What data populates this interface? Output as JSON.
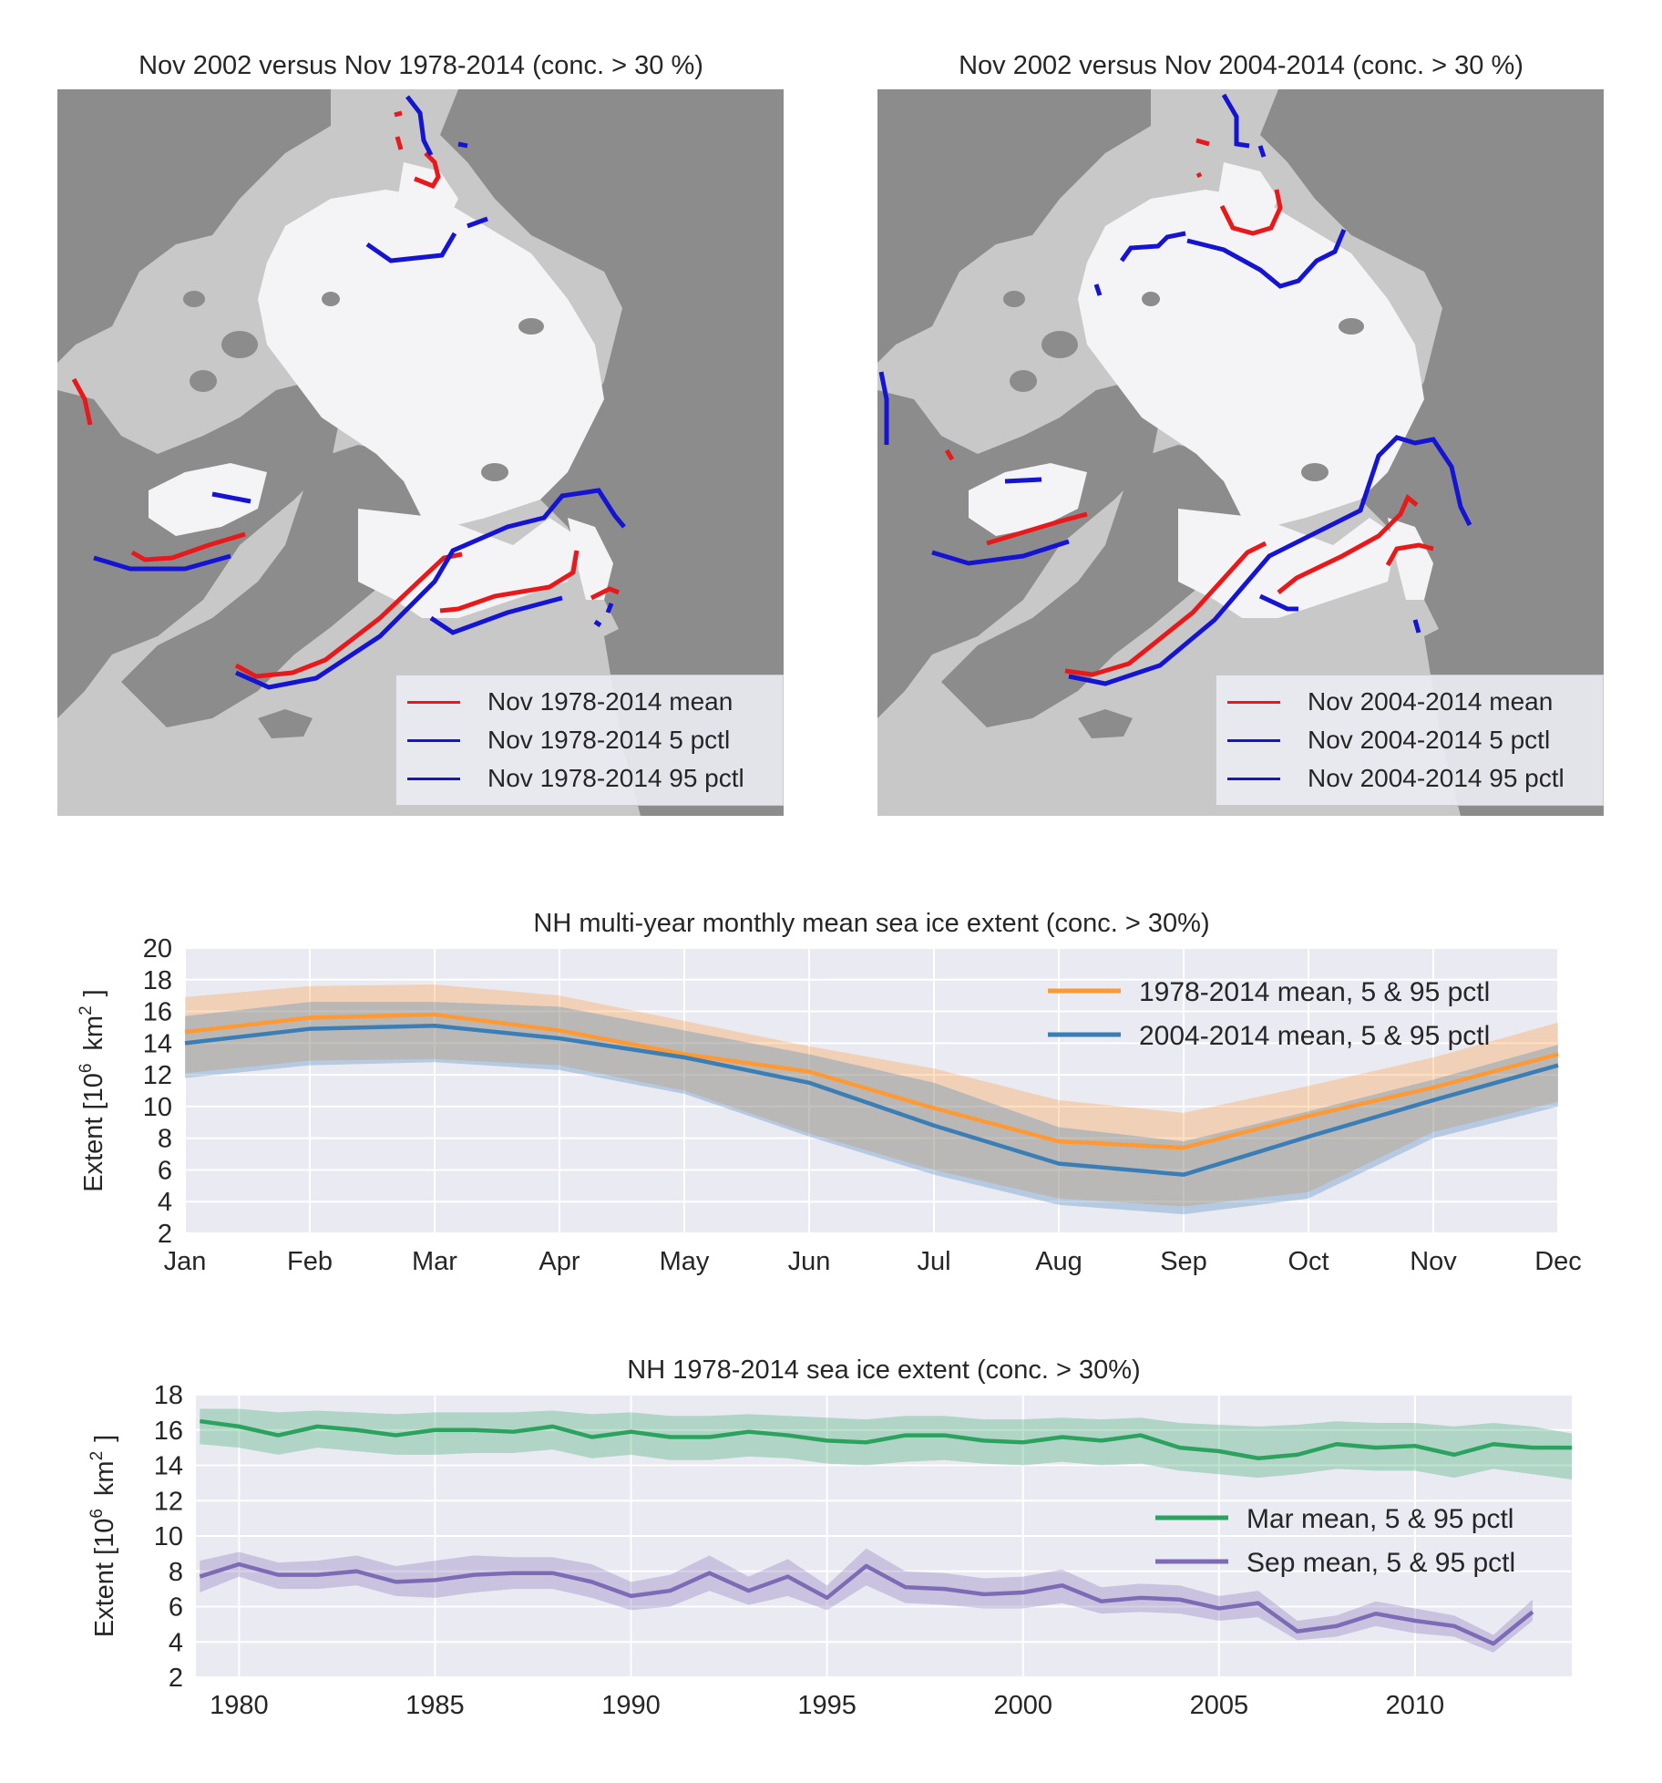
{
  "maps": [
    {
      "title": "Nov 2002 versus Nov 1978-2014 (conc. > 30 %)",
      "legend": [
        {
          "label": "Nov 1978-2014 mean",
          "color": "#e8191a"
        },
        {
          "label": "Nov 1978-2014 5 pctl",
          "color": "#1414d2"
        },
        {
          "label": "Nov 1978-2014 95 pctl",
          "color": "#1414d2"
        }
      ]
    },
    {
      "title": "Nov 2002 versus Nov 2004-2014 (conc. > 30 %)",
      "legend": [
        {
          "label": "Nov 2004-2014 mean",
          "color": "#e8191a"
        },
        {
          "label": "Nov 2004-2014 5 pctl",
          "color": "#1414d2"
        },
        {
          "label": "Nov 2004-2014 95 pctl",
          "color": "#1414d2"
        }
      ]
    }
  ],
  "map_colors": {
    "ocean": "#c8c8c8",
    "land": "#8c8c8c",
    "ice": "#f4f4f6",
    "lake": "#dcdcdc"
  },
  "chart_data": [
    {
      "type": "area",
      "title": "NH multi-year monthly mean sea ice extent (conc. > 30%)",
      "ylabel": "Extent [10⁶ km²]",
      "ylabel_base": "Extent [10",
      "ylabel_exp": "6",
      "ylabel_unit": "km",
      "ylabel_unit_exp": "2",
      "ylabel_end": "]",
      "categories": [
        "Jan",
        "Feb",
        "Mar",
        "Apr",
        "May",
        "Jun",
        "Jul",
        "Aug",
        "Sep",
        "Oct",
        "Nov",
        "Dec"
      ],
      "ylim": [
        2,
        20
      ],
      "yticks": [
        2,
        4,
        6,
        8,
        10,
        12,
        14,
        16,
        18,
        20
      ],
      "grid": true,
      "legend_position": "top-right",
      "series": [
        {
          "name": "1978-2014 mean, 5 & 95 pctl",
          "color": "#ff9933",
          "mean": [
            14.7,
            15.6,
            15.8,
            14.8,
            13.3,
            12.2,
            9.9,
            7.8,
            7.4,
            9.4,
            11.2,
            13.3
          ],
          "p5": [
            12.1,
            12.9,
            13.0,
            12.6,
            11.0,
            8.3,
            6.0,
            4.2,
            3.7,
            4.6,
            8.4,
            10.3
          ],
          "p95": [
            16.9,
            17.6,
            17.7,
            17.0,
            15.4,
            13.8,
            12.4,
            10.4,
            9.6,
            11.3,
            13.1,
            15.3
          ]
        },
        {
          "name": "2004-2014 mean, 5 & 95 pctl",
          "color": "#3a7eb5",
          "mean": [
            14.0,
            14.9,
            15.1,
            14.3,
            13.1,
            11.5,
            8.8,
            6.4,
            5.7,
            8.1,
            10.4,
            12.6
          ],
          "p5": [
            11.8,
            12.6,
            12.8,
            12.3,
            10.8,
            8.1,
            5.7,
            3.8,
            3.2,
            4.2,
            8.0,
            10.0
          ],
          "p95": [
            15.7,
            16.6,
            16.6,
            16.3,
            14.8,
            13.3,
            11.5,
            8.7,
            7.8,
            9.7,
            11.7,
            13.9
          ]
        }
      ]
    },
    {
      "type": "area",
      "title": "NH 1978-2014 sea ice extent (conc. > 30%)",
      "ylabel_base": "Extent [10",
      "ylabel_exp": "6",
      "ylabel_unit": "km",
      "ylabel_unit_exp": "2",
      "ylabel_end": "]",
      "xlim": [
        1978.9,
        2014
      ],
      "xticks": [
        1980,
        1985,
        1990,
        1995,
        2000,
        2005,
        2010
      ],
      "ylim": [
        2,
        18
      ],
      "yticks": [
        2,
        4,
        6,
        8,
        10,
        12,
        14,
        16,
        18
      ],
      "grid": true,
      "legend_position": "center-right",
      "x": [
        1979,
        1980,
        1981,
        1982,
        1983,
        1984,
        1985,
        1986,
        1987,
        1988,
        1989,
        1990,
        1991,
        1992,
        1993,
        1994,
        1995,
        1996,
        1997,
        1998,
        1999,
        2000,
        2001,
        2002,
        2003,
        2004,
        2005,
        2006,
        2007,
        2008,
        2009,
        2010,
        2011,
        2012,
        2013,
        2014
      ],
      "series": [
        {
          "name": "Mar mean, 5 & 95 pctl",
          "color": "#2ca25f",
          "mean": [
            16.5,
            16.2,
            15.7,
            16.2,
            16.0,
            15.7,
            16.0,
            16.0,
            15.9,
            16.2,
            15.6,
            15.9,
            15.6,
            15.6,
            15.9,
            15.7,
            15.4,
            15.3,
            15.7,
            15.7,
            15.4,
            15.3,
            15.6,
            15.4,
            15.7,
            15.0,
            14.8,
            14.4,
            14.6,
            15.2,
            15.0,
            15.1,
            14.6,
            15.2,
            15.0,
            15.0
          ],
          "p5": [
            15.2,
            15.0,
            14.6,
            15.0,
            14.8,
            14.6,
            14.6,
            14.7,
            14.7,
            14.9,
            14.4,
            14.6,
            14.3,
            14.3,
            14.5,
            14.4,
            14.1,
            14.0,
            14.2,
            14.3,
            14.1,
            14.0,
            14.2,
            14.0,
            14.1,
            13.7,
            13.5,
            13.3,
            13.5,
            13.8,
            13.7,
            13.7,
            13.3,
            13.8,
            13.5,
            13.2
          ],
          "p95": [
            17.2,
            17.2,
            17.0,
            17.1,
            17.0,
            16.9,
            17.0,
            17.0,
            17.0,
            17.1,
            16.9,
            17.0,
            16.8,
            16.8,
            16.9,
            16.8,
            16.7,
            16.6,
            16.8,
            16.8,
            16.6,
            16.6,
            16.7,
            16.6,
            16.7,
            16.4,
            16.3,
            16.2,
            16.3,
            16.5,
            16.4,
            16.4,
            16.2,
            16.4,
            16.2,
            15.8
          ]
        },
        {
          "name": "Sep mean, 5 & 95 pctl",
          "color": "#7d6bb5",
          "mean": [
            7.7,
            8.4,
            7.8,
            7.8,
            8.0,
            7.4,
            7.5,
            7.8,
            7.9,
            7.9,
            7.4,
            6.6,
            6.9,
            7.9,
            6.9,
            7.7,
            6.5,
            8.3,
            7.1,
            7.0,
            6.7,
            6.8,
            7.2,
            6.3,
            6.5,
            6.4,
            5.9,
            6.2,
            4.6,
            4.9,
            5.6,
            5.2,
            4.9,
            3.9,
            5.7
          ],
          "p5": [
            6.8,
            7.7,
            7.0,
            7.0,
            7.2,
            6.6,
            6.5,
            6.8,
            7.0,
            7.0,
            6.5,
            5.8,
            6.0,
            6.9,
            6.1,
            6.6,
            5.8,
            7.2,
            6.2,
            6.1,
            5.9,
            5.9,
            6.2,
            5.6,
            5.7,
            5.6,
            5.2,
            5.4,
            4.1,
            4.3,
            4.9,
            4.5,
            4.3,
            3.4,
            5.2
          ],
          "p95": [
            8.6,
            9.1,
            8.5,
            8.6,
            8.9,
            8.3,
            8.6,
            8.9,
            8.8,
            8.8,
            8.4,
            7.4,
            7.8,
            8.9,
            7.7,
            8.7,
            7.2,
            9.3,
            8.0,
            7.9,
            7.6,
            7.7,
            8.1,
            7.1,
            7.3,
            7.2,
            6.6,
            6.9,
            5.2,
            5.5,
            6.3,
            5.9,
            5.5,
            4.4,
            6.4
          ]
        }
      ]
    }
  ]
}
